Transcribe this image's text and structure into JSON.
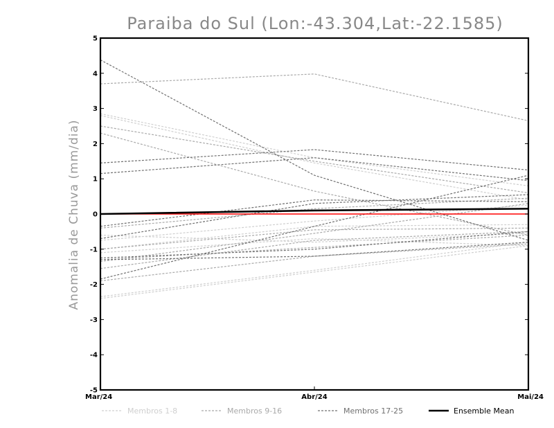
{
  "chart_data": {
    "type": "line",
    "title": "Paraiba do Sul (Lon:-43.304,Lat:-22.1585)",
    "xlabel": "",
    "ylabel": "Anomalia de Chuva (mm/dia)",
    "categories": [
      "Mar/24",
      "Abr/24",
      "Mai/24"
    ],
    "ylim": [
      -5,
      5
    ],
    "yticks": [
      "5",
      "4",
      "3",
      "2",
      "1",
      "0",
      "-1",
      "-2",
      "-3",
      "-4",
      "-5"
    ],
    "reference_line": {
      "value": 0,
      "color": "#ff0000"
    },
    "groups": [
      {
        "name": "Membros 1-8",
        "color": "#cfcfcf",
        "dash": "3,2"
      },
      {
        "name": "Membros 9-16",
        "color": "#a9a9a9",
        "dash": "3,2"
      },
      {
        "name": "Membros 17-25",
        "color": "#6f6f6f",
        "dash": "3,2"
      }
    ],
    "members": [
      {
        "group": 0,
        "values": [
          2.85,
          1.6,
          0.8
        ]
      },
      {
        "group": 0,
        "values": [
          2.8,
          1.45,
          0.4
        ]
      },
      {
        "group": 0,
        "values": [
          -0.6,
          -0.8,
          -0.55
        ]
      },
      {
        "group": 0,
        "values": [
          -0.75,
          -0.2,
          0.25
        ]
      },
      {
        "group": 0,
        "values": [
          -1.0,
          -0.35,
          -0.3
        ]
      },
      {
        "group": 0,
        "values": [
          -1.1,
          -0.7,
          -0.9
        ]
      },
      {
        "group": 0,
        "values": [
          -2.35,
          -1.6,
          -0.8
        ]
      },
      {
        "group": 0,
        "values": [
          -2.4,
          -1.65,
          -0.9
        ]
      },
      {
        "group": 1,
        "values": [
          3.7,
          3.98,
          2.65
        ]
      },
      {
        "group": 1,
        "values": [
          2.5,
          1.5,
          0.6
        ]
      },
      {
        "group": 1,
        "values": [
          2.3,
          0.65,
          -0.6
        ]
      },
      {
        "group": 1,
        "values": [
          -0.4,
          0.15,
          0.45
        ]
      },
      {
        "group": 1,
        "values": [
          -1.0,
          -0.45,
          -0.4
        ]
      },
      {
        "group": 1,
        "values": [
          -1.3,
          -0.95,
          -0.6
        ]
      },
      {
        "group": 1,
        "values": [
          -1.35,
          -0.55,
          0.3
        ]
      },
      {
        "group": 1,
        "values": [
          -1.55,
          -0.75,
          -0.5
        ]
      },
      {
        "group": 1,
        "values": [
          -1.9,
          -1.2,
          -0.85
        ]
      },
      {
        "group": 2,
        "values": [
          4.38,
          1.1,
          -0.75
        ]
      },
      {
        "group": 2,
        "values": [
          1.45,
          1.83,
          1.25
        ]
      },
      {
        "group": 2,
        "values": [
          1.15,
          1.6,
          0.95
        ]
      },
      {
        "group": 2,
        "values": [
          -0.35,
          0.4,
          0.35
        ]
      },
      {
        "group": 2,
        "values": [
          -0.7,
          0.3,
          0.55
        ]
      },
      {
        "group": 2,
        "values": [
          -1.25,
          -1.0,
          -0.5
        ]
      },
      {
        "group": 2,
        "values": [
          -1.3,
          -1.2,
          -0.8
        ]
      },
      {
        "group": 2,
        "values": [
          -1.85,
          -0.35,
          1.1
        ]
      }
    ],
    "ensemble_mean": {
      "name": "Ensemble Mean",
      "color": "#000000",
      "values": [
        0.0,
        0.1,
        0.15
      ]
    }
  }
}
